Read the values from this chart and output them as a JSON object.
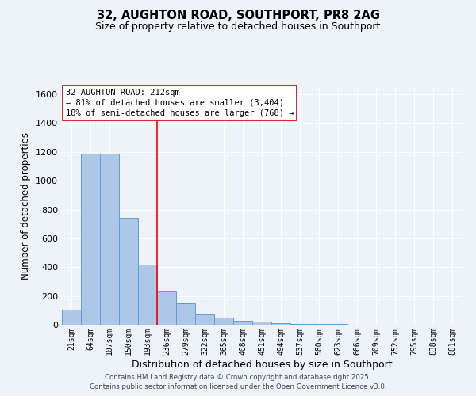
{
  "title": "32, AUGHTON ROAD, SOUTHPORT, PR8 2AG",
  "subtitle": "Size of property relative to detached houses in Southport",
  "xlabel": "Distribution of detached houses by size in Southport",
  "ylabel": "Number of detached properties",
  "bar_labels": [
    "21sqm",
    "64sqm",
    "107sqm",
    "150sqm",
    "193sqm",
    "236sqm",
    "279sqm",
    "322sqm",
    "365sqm",
    "408sqm",
    "451sqm",
    "494sqm",
    "537sqm",
    "580sqm",
    "623sqm",
    "666sqm",
    "709sqm",
    "752sqm",
    "795sqm",
    "838sqm",
    "881sqm"
  ],
  "bar_values": [
    105,
    1190,
    1190,
    740,
    420,
    230,
    150,
    70,
    50,
    30,
    20,
    10,
    8,
    5,
    3,
    2,
    1,
    0,
    0,
    0,
    1
  ],
  "bar_color": "#aec6e8",
  "bar_edge_color": "#5a9fd4",
  "background_color": "#eef2f9",
  "grid_color": "#ffffff",
  "ylim": [
    0,
    1650
  ],
  "yticks": [
    0,
    200,
    400,
    600,
    800,
    1000,
    1200,
    1400,
    1600
  ],
  "property_label": "32 AUGHTON ROAD: 212sqm",
  "annotation_line1": "← 81% of detached houses are smaller (3,404)",
  "annotation_line2": "18% of semi-detached houses are larger (768) →",
  "red_line_x": 4.5,
  "footnote1": "Contains HM Land Registry data © Crown copyright and database right 2025.",
  "footnote2": "Contains public sector information licensed under the Open Government Licence v3.0."
}
